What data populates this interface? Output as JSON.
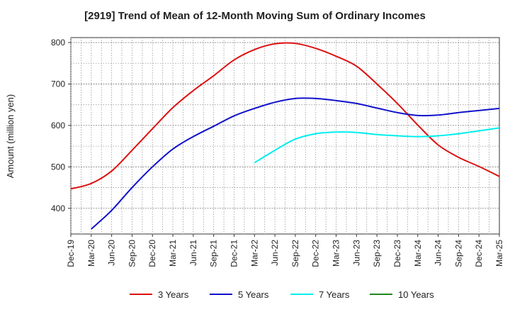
{
  "chart_data": {
    "type": "line",
    "title": "[2919]  Trend of Mean of 12-Month Moving Sum of Ordinary Incomes",
    "ylabel": "Amount (million yen)",
    "xlabel": "",
    "ylim": [
      338,
      812
    ],
    "yticks": [
      400,
      500,
      600,
      700,
      800
    ],
    "categories": [
      "Dec-19",
      "Mar-20",
      "Jun-20",
      "Sep-20",
      "Dec-20",
      "Mar-21",
      "Jun-21",
      "Sep-21",
      "Dec-21",
      "Mar-22",
      "Jun-22",
      "Sep-22",
      "Dec-22",
      "Mar-23",
      "Jun-23",
      "Sep-23",
      "Dec-23",
      "Mar-24",
      "Jun-24",
      "Sep-24",
      "Dec-24",
      "Mar-25"
    ],
    "grid": true,
    "legend_position": "bottom",
    "series": [
      {
        "name": "3 Years",
        "color": "#dd1111",
        "values": [
          447,
          460,
          490,
          540,
          592,
          643,
          684,
          720,
          758,
          783,
          797,
          798,
          786,
          767,
          743,
          700,
          653,
          601,
          553,
          523,
          501,
          477
        ]
      },
      {
        "name": "5 Years",
        "color": "#1111cc",
        "values": [
          null,
          350,
          395,
          450,
          500,
          543,
          573,
          598,
          623,
          641,
          656,
          665,
          665,
          660,
          653,
          642,
          631,
          624,
          625,
          631,
          636,
          641
        ]
      },
      {
        "name": "7 Years",
        "color": "#00eeee",
        "values": [
          null,
          null,
          null,
          null,
          null,
          null,
          null,
          null,
          null,
          510,
          540,
          567,
          580,
          584,
          583,
          578,
          575,
          573,
          575,
          580,
          587,
          594
        ]
      },
      {
        "name": "10 Years",
        "color": "#228822",
        "values": [
          null,
          null,
          null,
          null,
          null,
          null,
          null,
          null,
          null,
          null,
          null,
          null,
          null,
          null,
          null,
          null,
          null,
          null,
          null,
          null,
          null,
          null
        ]
      }
    ]
  }
}
